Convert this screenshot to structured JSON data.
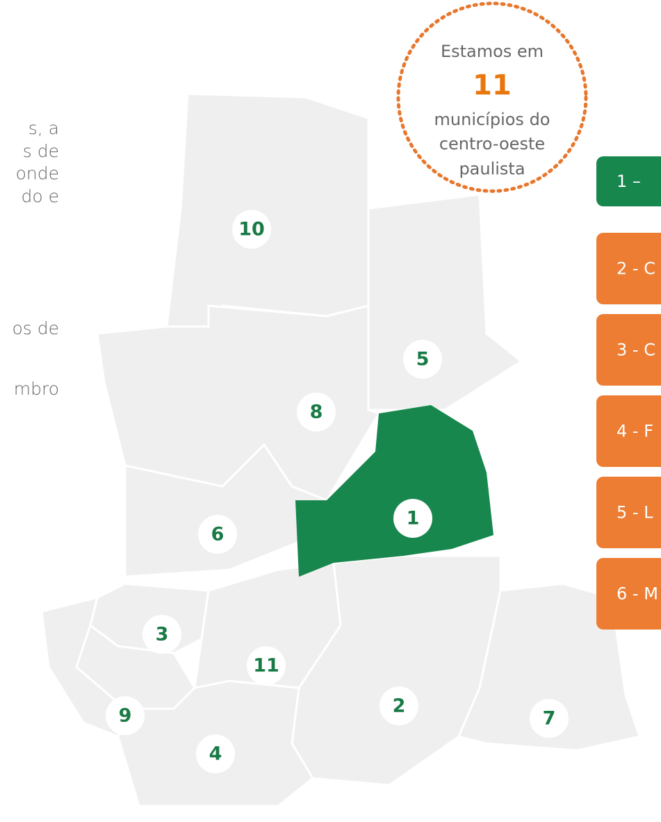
{
  "paragraph_fragments": [
    "s,  a",
    "s de",
    "onde",
    "do  e",
    "os de",
    "mbro"
  ],
  "badge": {
    "line1": "Estamos em",
    "number": "11",
    "line2": "municípios do",
    "line3": "centro-oeste",
    "line4": "paulista"
  },
  "map": {
    "labels": [
      "1",
      "2",
      "3",
      "4",
      "5",
      "6",
      "7",
      "8",
      "9",
      "10",
      "11"
    ]
  },
  "menu": {
    "items": [
      "1 –",
      "2 - C",
      "3 - C",
      "4 - F",
      "5 - L",
      "6 - M"
    ]
  }
}
